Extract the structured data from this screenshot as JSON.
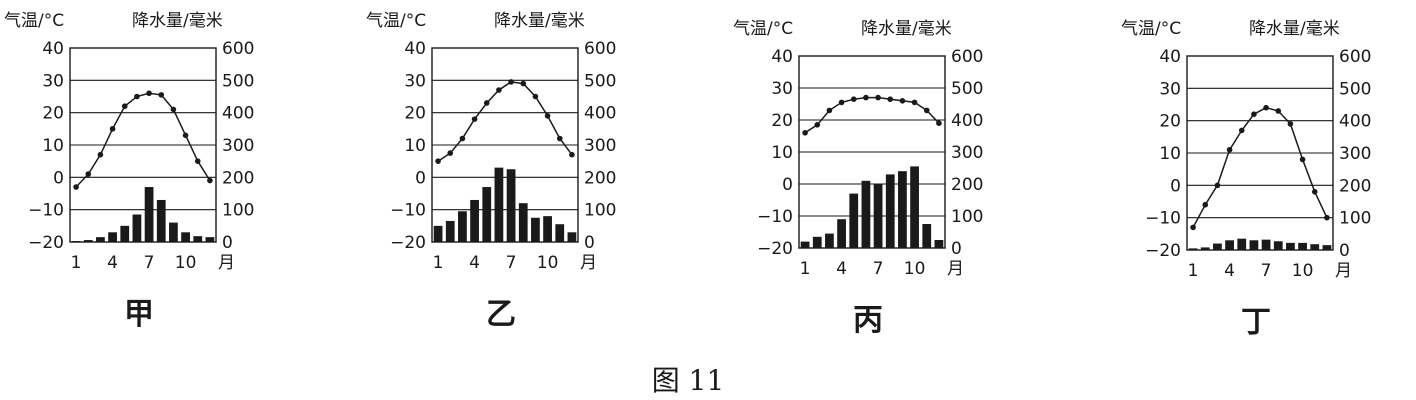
{
  "caption": "图 11",
  "chart_data": [
    {
      "type": "bar+line",
      "name": "甲",
      "left_axis_label": "气温/°C",
      "right_axis_label": "降水量/毫米",
      "left_ticks": [
        "40",
        "30",
        "20",
        "10",
        "0",
        "−10",
        "−20"
      ],
      "right_ticks": [
        "600",
        "500",
        "400",
        "300",
        "200",
        "100",
        "0"
      ],
      "x_ticks": [
        "1",
        "4",
        "7",
        "10"
      ],
      "x_unit": "月",
      "temp_range": [
        -20,
        40
      ],
      "precip_range": [
        0,
        600
      ],
      "months": [
        1,
        2,
        3,
        4,
        5,
        6,
        7,
        8,
        9,
        10,
        11,
        12
      ],
      "temperature": [
        -3,
        1,
        7,
        15,
        22,
        25,
        26,
        25.5,
        21,
        13,
        5,
        -1
      ],
      "precipitation": [
        3,
        6,
        15,
        30,
        50,
        85,
        170,
        130,
        60,
        30,
        18,
        15
      ]
    },
    {
      "type": "bar+line",
      "name": "乙",
      "left_axis_label": "气温/°C",
      "right_axis_label": "降水量/毫米",
      "left_ticks": [
        "40",
        "30",
        "20",
        "10",
        "0",
        "−10",
        "−20"
      ],
      "right_ticks": [
        "600",
        "500",
        "400",
        "300",
        "200",
        "100",
        "0"
      ],
      "x_ticks": [
        "1",
        "4",
        "7",
        "10"
      ],
      "x_unit": "月",
      "temp_range": [
        -20,
        40
      ],
      "precip_range": [
        0,
        600
      ],
      "months": [
        1,
        2,
        3,
        4,
        5,
        6,
        7,
        8,
        9,
        10,
        11,
        12
      ],
      "temperature": [
        5,
        7.5,
        12,
        18,
        23,
        27,
        29.5,
        29,
        25,
        19,
        12,
        7
      ],
      "precipitation": [
        50,
        65,
        95,
        130,
        170,
        230,
        225,
        120,
        75,
        80,
        55,
        30
      ]
    },
    {
      "type": "bar+line",
      "name": "丙",
      "left_axis_label": "气温/°C",
      "right_axis_label": "降水量/毫米",
      "left_ticks": [
        "40",
        "30",
        "20",
        "10",
        "0",
        "−10",
        "−20"
      ],
      "right_ticks": [
        "600",
        "500",
        "400",
        "300",
        "200",
        "100",
        "0"
      ],
      "x_ticks": [
        "1",
        "4",
        "7",
        "10"
      ],
      "x_unit": "月",
      "temp_range": [
        -20,
        40
      ],
      "precip_range": [
        0,
        600
      ],
      "months": [
        1,
        2,
        3,
        4,
        5,
        6,
        7,
        8,
        9,
        10,
        11,
        12
      ],
      "temperature": [
        16,
        18.5,
        23,
        25.5,
        26.5,
        27,
        27,
        26.5,
        26,
        25.5,
        23,
        19
      ],
      "precipitation": [
        20,
        35,
        45,
        90,
        170,
        210,
        200,
        230,
        240,
        255,
        75,
        25
      ]
    },
    {
      "type": "bar+line",
      "name": "丁",
      "left_axis_label": "气温/°C",
      "right_axis_label": "降水量/毫米",
      "left_ticks": [
        "40",
        "30",
        "20",
        "10",
        "0",
        "−10",
        "−20"
      ],
      "right_ticks": [
        "600",
        "500",
        "400",
        "300",
        "200",
        "100",
        "0"
      ],
      "x_ticks": [
        "1",
        "4",
        "7",
        "10"
      ],
      "x_unit": "月",
      "temp_range": [
        -20,
        40
      ],
      "precip_range": [
        0,
        600
      ],
      "months": [
        1,
        2,
        3,
        4,
        5,
        6,
        7,
        8,
        9,
        10,
        11,
        12
      ],
      "temperature": [
        -13,
        -6,
        0,
        11,
        17,
        22,
        24,
        23,
        19,
        8,
        -2,
        -10
      ],
      "precipitation": [
        5,
        8,
        20,
        30,
        35,
        30,
        32,
        27,
        22,
        22,
        18,
        15
      ]
    }
  ]
}
